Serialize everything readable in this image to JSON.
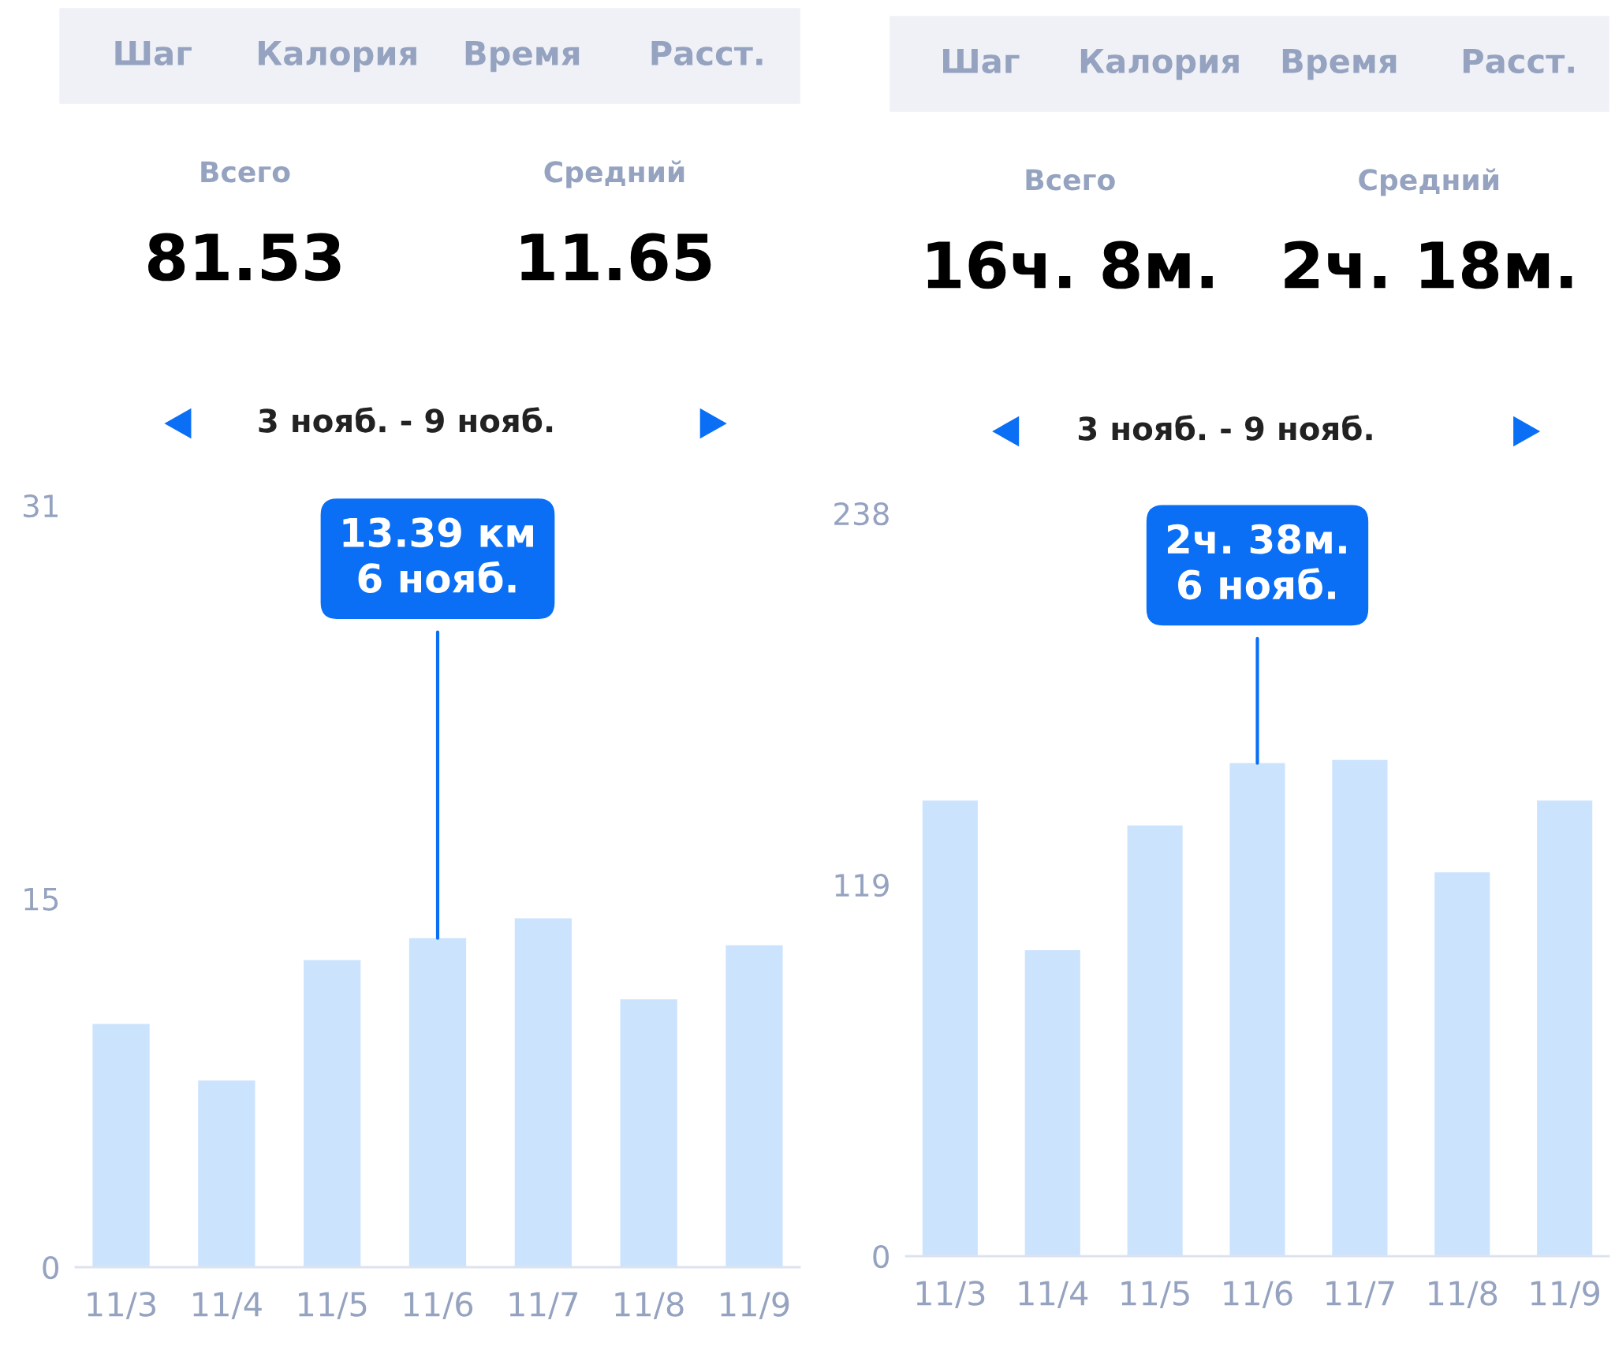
{
  "chart_data": [
    {
      "type": "bar",
      "subtitle": "3 нояб. - 9 нояб.",
      "categories": [
        "11/3",
        "11/4",
        "11/5",
        "11/6",
        "11/7",
        "11/8",
        "11/9"
      ],
      "values": [
        9.9,
        7.6,
        12.5,
        13.39,
        14.2,
        10.9,
        13.1
      ],
      "color": "#cce3fd",
      "ylim": [
        0,
        31
      ],
      "yticks": [
        0,
        15,
        31
      ],
      "grid": false,
      "annotations": [
        "Шаг",
        "Калория",
        "Время",
        "Расст.",
        "Всего",
        "81.53",
        "Средний",
        "11.65",
        {
          "text": "13.39 км\n6 нояб.",
          "x": "11/6",
          "y": 13.39
        }
      ]
    },
    {
      "type": "bar",
      "subtitle": "3 нояб. - 9 нояб.",
      "categories": [
        "11/3",
        "11/4",
        "11/5",
        "11/6",
        "11/7",
        "11/8",
        "11/9"
      ],
      "values": [
        146,
        98,
        138,
        158,
        159,
        123,
        146
      ],
      "color": "#cce3fd",
      "ylim": [
        0,
        238
      ],
      "yticks": [
        0,
        119,
        238
      ],
      "grid": false,
      "annotations": [
        "Шаг",
        "Калория",
        "Время",
        "Расст.",
        "Всего",
        "16ч. 8м.",
        "Средний",
        "2ч. 18м.",
        {
          "text": "2ч. 38м.\n6 нояб.",
          "x": "11/6",
          "y": 158
        }
      ]
    }
  ]
}
